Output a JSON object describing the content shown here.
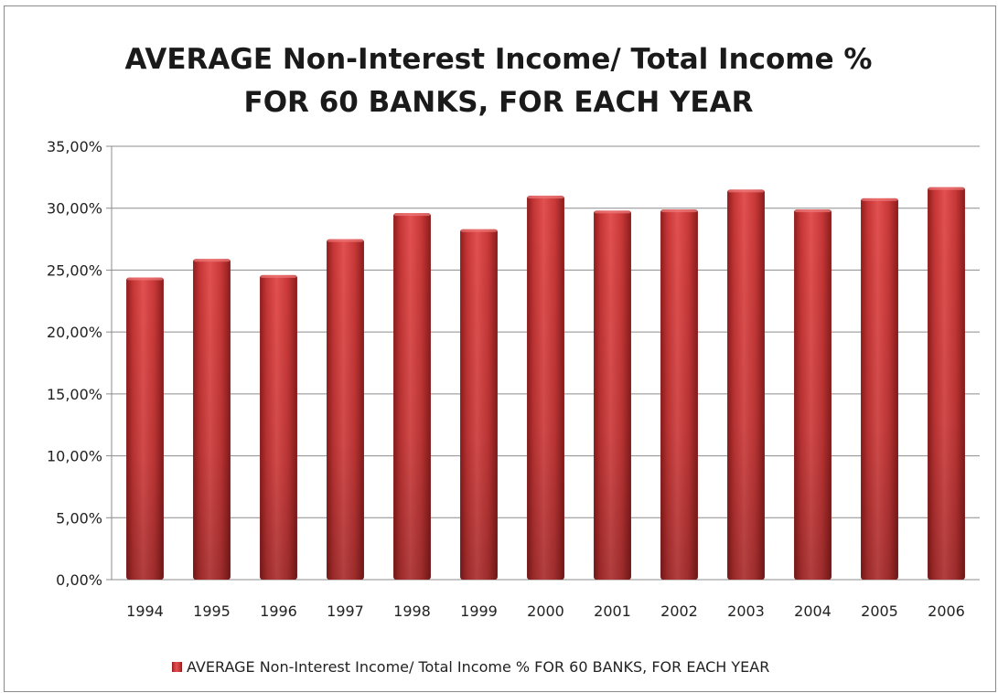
{
  "chart_data": {
    "type": "bar",
    "title_lines": [
      "AVERAGE Non-Interest Income/ Total Income %",
      "FOR 60 BANKS, FOR EACH YEAR"
    ],
    "xlabel": "",
    "ylabel": "",
    "categories": [
      "1994",
      "1995",
      "1996",
      "1997",
      "1998",
      "1999",
      "2000",
      "2001",
      "2002",
      "2003",
      "2004",
      "2005",
      "2006"
    ],
    "series": [
      {
        "name": "AVERAGE Non-Interest Income/ Total Income % FOR 60 BANKS, FOR EACH YEAR",
        "values": [
          24.4,
          25.9,
          24.6,
          27.5,
          29.6,
          28.3,
          31.0,
          29.8,
          29.9,
          31.5,
          29.9,
          30.8,
          31.7
        ],
        "color": "#d03b3b"
      }
    ],
    "ylim": [
      0,
      35
    ],
    "yticks": [
      0,
      5,
      10,
      15,
      20,
      25,
      30,
      35
    ],
    "ytick_labels": [
      "0,00%",
      "5,00%",
      "10,00%",
      "15,00%",
      "20,00%",
      "25,00%",
      "30,00%",
      "35,00%"
    ],
    "grid": true,
    "legend_position": "bottom"
  }
}
